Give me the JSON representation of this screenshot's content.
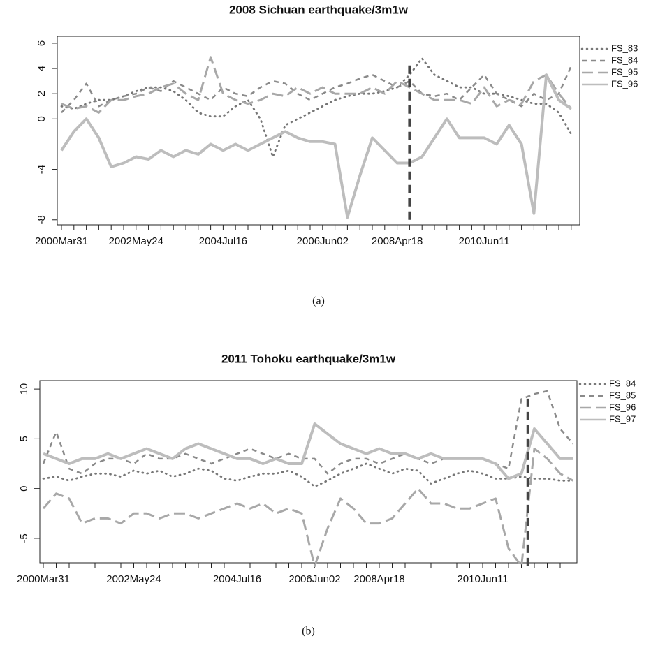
{
  "chart_data": [
    {
      "type": "line",
      "title": "2008 Sichuan earthquake/3m1w",
      "caption": "(a)",
      "categories": [
        "2000Mar31",
        null,
        null,
        null,
        null,
        null,
        "2002May24",
        null,
        null,
        null,
        null,
        null,
        null,
        "2004Jul16",
        null,
        null,
        null,
        null,
        null,
        null,
        null,
        "2006Jun02",
        null,
        null,
        null,
        null,
        null,
        "2008Apr18",
        null,
        null,
        null,
        null,
        null,
        null,
        "2010Jun11",
        null,
        null,
        null,
        null,
        null,
        null,
        null
      ],
      "ylim": [
        -8.4,
        6.55
      ],
      "yticks": [
        -8,
        -4,
        0,
        2,
        4,
        6
      ],
      "legend": "right-outside",
      "vline": {
        "x": 28,
        "y": [
          -8,
          4.6
        ],
        "color": "#444444"
      },
      "series": [
        {
          "name": "FS_83",
          "color": "#777777",
          "linestyle": "dotted",
          "values": [
            1,
            0.8,
            1.2,
            1.5,
            1.5,
            1.8,
            2.2,
            2.5,
            2.5,
            2.2,
            1.5,
            0.5,
            0.2,
            0.2,
            1,
            1.5,
            0,
            -3,
            -0.5,
            0,
            0.5,
            1,
            1.5,
            1.8,
            2,
            2,
            2.2,
            2.5,
            3.5,
            4.8,
            3.5,
            3,
            2.5,
            2.5,
            2,
            2,
            1.8,
            1.5,
            1.2,
            1.2,
            0.5,
            -1.2
          ]
        },
        {
          "name": "FS_84",
          "color": "#8a8a8a",
          "linestyle": "dashed",
          "values": [
            0.5,
            1.5,
            2.8,
            1,
            1.5,
            1.8,
            2,
            2.5,
            2.2,
            3,
            2.5,
            2,
            1.5,
            2.5,
            2,
            1.8,
            2.5,
            3,
            2.8,
            2,
            1.5,
            2,
            2.5,
            2.8,
            3.2,
            3.5,
            3,
            2.5,
            3,
            2,
            1.8,
            2,
            1.5,
            2.5,
            3.5,
            2,
            1.5,
            1,
            2,
            1.5,
            2,
            4.2
          ]
        },
        {
          "name": "FS_95",
          "color": "#a8a8a8",
          "linestyle": "longdash",
          "values": [
            1.2,
            0.8,
            1,
            0.5,
            1.5,
            1.5,
            1.8,
            2,
            2.5,
            2.8,
            2,
            1.5,
            4.9,
            2,
            1.5,
            1.2,
            1.5,
            2,
            1.8,
            2.5,
            2,
            2.5,
            2,
            2,
            2,
            2.5,
            2,
            3,
            2.5,
            2,
            1.5,
            1.5,
            1.5,
            1.2,
            2.5,
            1,
            1.5,
            1.2,
            3,
            3.5,
            2,
            0.8
          ]
        },
        {
          "name": "FS_96",
          "color": "#bdbdbd",
          "linestyle": "solid",
          "values": [
            -2.5,
            -1,
            0,
            -1.5,
            -3.8,
            -3.5,
            -3,
            -3.2,
            -2.5,
            -3,
            -2.5,
            -2.8,
            -2,
            -2.5,
            -2,
            -2.5,
            -2,
            -1.5,
            -1,
            -1.5,
            -1.8,
            -1.8,
            -2,
            -7.8,
            -4.5,
            -1.5,
            -2.5,
            -3.5,
            -3.5,
            -3,
            -1.5,
            0,
            -1.5,
            -1.5,
            -1.5,
            -2,
            -0.5,
            -2,
            -7.5,
            3.5,
            1.5,
            0.8
          ]
        }
      ]
    },
    {
      "type": "line",
      "title": "2011 Tohoku earthquake/3m1w",
      "caption": "(b)",
      "categories": [
        "2000Mar31",
        null,
        null,
        null,
        null,
        null,
        null,
        "2002May24",
        null,
        null,
        null,
        null,
        null,
        null,
        null,
        "2004Jul16",
        null,
        null,
        null,
        null,
        null,
        "2006Jun02",
        null,
        null,
        null,
        null,
        "2008Apr18",
        null,
        null,
        null,
        null,
        null,
        null,
        null,
        "2010Jun11",
        null,
        null,
        null,
        null,
        null,
        null,
        null
      ],
      "ylim": [
        -7.46,
        10.85
      ],
      "yticks": [
        -5,
        0,
        5,
        10
      ],
      "legend": "right-outside",
      "vline": {
        "x": 37.5,
        "y": [
          -7.8,
          9.2
        ],
        "color": "#444444"
      },
      "series": [
        {
          "name": "FS_84",
          "color": "#777777",
          "linestyle": "dotted",
          "values": [
            1,
            1.2,
            0.8,
            1.2,
            1.5,
            1.5,
            1.2,
            1.8,
            1.5,
            1.8,
            1.2,
            1.5,
            2,
            1.8,
            1,
            0.8,
            1.2,
            1.5,
            1.5,
            1.8,
            1.2,
            0.2,
            0.8,
            1.5,
            2,
            2.5,
            2,
            1.5,
            2,
            1.8,
            0.5,
            1,
            1.5,
            1.8,
            1.5,
            1,
            1,
            1.2,
            1,
            1,
            0.8,
            0.8
          ]
        },
        {
          "name": "FS_85",
          "color": "#8a8a8a",
          "linestyle": "dashed",
          "values": [
            2.5,
            5.7,
            2,
            1.5,
            2.5,
            3,
            3,
            2.5,
            3.5,
            3,
            3,
            3.5,
            3,
            2.5,
            3,
            3.5,
            4,
            3.5,
            3,
            3.5,
            3,
            3,
            1.5,
            2.5,
            3,
            3,
            2.5,
            3,
            3.5,
            3,
            2.5,
            3,
            3,
            3,
            3,
            2.5,
            2,
            9,
            9.5,
            9.8,
            6,
            4.5
          ]
        },
        {
          "name": "FS_96",
          "color": "#a8a8a8",
          "linestyle": "longdash",
          "values": [
            -2,
            -0.5,
            -1,
            -3.5,
            -3,
            -3,
            -3.5,
            -2.5,
            -2.5,
            -3,
            -2.5,
            -2.5,
            -3,
            -2.5,
            -2,
            -1.5,
            -2,
            -1.5,
            -2.5,
            -2,
            -2.5,
            -7.8,
            -4,
            -1,
            -2,
            -3.5,
            -3.5,
            -3,
            -1.5,
            0,
            -1.5,
            -1.5,
            -2,
            -2,
            -1.5,
            -1,
            -6,
            -7.8,
            4,
            3,
            1.5,
            0.8
          ]
        },
        {
          "name": "FS_97",
          "color": "#bdbdbd",
          "linestyle": "solid",
          "values": [
            3.5,
            3,
            2.5,
            3,
            3,
            3.5,
            3,
            3.5,
            4,
            3.5,
            3,
            4,
            4.5,
            4,
            3.5,
            3,
            3,
            2.5,
            3,
            2.5,
            2.5,
            6.5,
            5.5,
            4.5,
            4,
            3.5,
            4,
            3.5,
            3.5,
            3,
            3.5,
            3,
            3,
            3,
            3,
            2.5,
            1,
            1.5,
            6,
            4.5,
            3,
            3
          ]
        }
      ]
    }
  ]
}
